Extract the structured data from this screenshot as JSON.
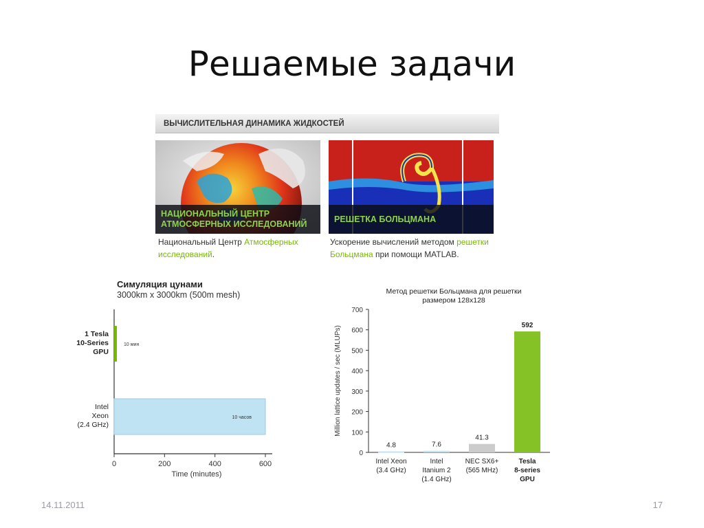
{
  "slide": {
    "title": "Решаемые задачи",
    "date": "14.11.2011",
    "page_number": "17"
  },
  "cfd": {
    "header": "ВЫЧИСЛИТЕЛЬНАЯ ДИНАМИКА ЖИДКОСТЕЙ",
    "panels": [
      {
        "caption_line1": "НАЦИОНАЛЬНЫЙ ЦЕНТР",
        "caption_line2": "АТМОСФЕРНЫХ ИССЛЕДОВАНИЙ",
        "desc_plain1": "Национальный Центр ",
        "desc_link": "Атмосферных исследований",
        "desc_plain2": "."
      },
      {
        "caption_line1": "РЕШЕТКА БОЛЬЦМАНА",
        "desc_plain1": "Ускорение вычислений методом ",
        "desc_link": "решетки Больцмана",
        "desc_plain2": " при помощи MATLAB."
      }
    ]
  },
  "chart_data": [
    {
      "type": "bar",
      "orientation": "horizontal",
      "title": "Симуляция цунами",
      "subtitle": "3000km x 3000km (500m mesh)",
      "categories": [
        "1 Tesla\n10-Series\nGPU",
        "Intel\nXeon\n(2.4 GHz)"
      ],
      "values": [
        10,
        600
      ],
      "data_labels": [
        "10 мин",
        "10 часов"
      ],
      "xlabel": "Time (minutes)",
      "xlim": [
        0,
        600
      ],
      "xticks": [
        0,
        200,
        400,
        600
      ],
      "grid": false,
      "colors": [
        "#76b900",
        "#bfe3f2"
      ]
    },
    {
      "type": "bar",
      "title": "Метод решетки Больцмана для решетки размером 128x128",
      "categories": [
        "Intel Xeon\n(3.4 GHz)",
        "Intel\nItanium 2\n(1.4 GHz)",
        "NEC SX6+\n(565 MHz)",
        "Tesla\n8-series\nGPU"
      ],
      "values": [
        4.8,
        7.6,
        41.3,
        592
      ],
      "data_labels": [
        "4.8",
        "7.6",
        "41.3",
        "592"
      ],
      "ylabel": "Million lattice updates / sec (MLUPs)",
      "ylim": [
        0,
        700
      ],
      "yticks": [
        0,
        100,
        200,
        300,
        400,
        500,
        600,
        700
      ],
      "grid": false,
      "colors": [
        "#bfe3f2",
        "#bfe3f2",
        "#cccccc",
        "#84c225"
      ]
    }
  ]
}
